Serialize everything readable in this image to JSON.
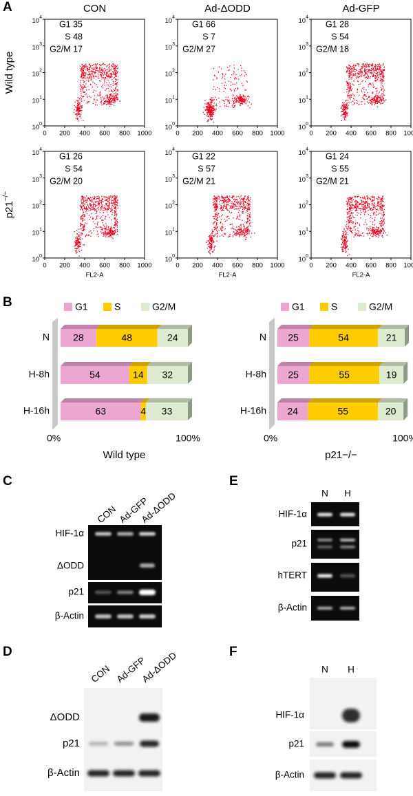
{
  "panel_labels": {
    "a": "A",
    "b": "B",
    "c": "C",
    "d": "D",
    "e": "E",
    "f": "F"
  },
  "panel_a": {
    "columns": [
      "CON",
      "Ad-ΔODD",
      "Ad-GFP"
    ],
    "rows": [
      {
        "label": "Wild type",
        "plots": [
          [
            "G1 35",
            "S 48",
            "G2/M 17"
          ],
          [
            "G1 66",
            "S 7",
            "G2/M 27"
          ],
          [
            "G1 28",
            "S 54",
            "G2/M 18"
          ]
        ]
      },
      {
        "label": "p21",
        "label_sup": "−/−",
        "plots": [
          [
            "G1 26",
            "S 54",
            "G2/M 20"
          ],
          [
            "G1 22",
            "S 57",
            "G2/M 21"
          ],
          [
            "G1 24",
            "S 55",
            "G2/M 21"
          ]
        ]
      }
    ],
    "y_tick_base": "10",
    "y_tick_exponents": [
      "0",
      "1",
      "2",
      "3",
      "4"
    ],
    "x_ticks": [
      "0",
      "200",
      "400",
      "600",
      "800",
      "1000"
    ],
    "x_label": "FL2-A"
  },
  "panel_b": {
    "legend": [
      "G1",
      "S",
      "G2/M"
    ],
    "colors": [
      "#eca6d0",
      "#ffcc00",
      "#dcebd0"
    ],
    "charts": [
      {
        "label": "Wild type",
        "categories": [
          "N",
          "H-8h",
          "H-16h"
        ],
        "values": [
          [
            28,
            48,
            24
          ],
          [
            54,
            14,
            32
          ],
          [
            63,
            4,
            33
          ]
        ],
        "axis_labels": [
          "0%",
          "100%"
        ]
      },
      {
        "label": "p21−/−",
        "categories": [
          "N",
          "H-8h",
          "H-16h"
        ],
        "values": [
          [
            25,
            54,
            21
          ],
          [
            25,
            55,
            19
          ],
          [
            24,
            55,
            20
          ]
        ],
        "axis_labels": [
          "0%",
          "100%"
        ]
      }
    ]
  },
  "panel_c": {
    "lanes": [
      "CON",
      "Ad-GFP",
      "Ad-ΔODD"
    ],
    "bands": [
      "HIF-1α",
      "ΔODD",
      "p21",
      "β-Actin"
    ]
  },
  "panel_d": {
    "lanes": [
      "CON",
      "Ad-GFP",
      "Ad-ΔODD"
    ],
    "bands": [
      "ΔODD",
      "p21",
      "β-Actin"
    ]
  },
  "panel_e": {
    "lanes": [
      "N",
      "H"
    ],
    "bands": [
      "HIF-1α",
      "p21",
      "hTERT",
      "β-Actin"
    ]
  },
  "panel_f": {
    "lanes": [
      "N",
      "H"
    ],
    "bands": [
      "HIF-1α",
      "p21",
      "β-Actin"
    ]
  }
}
